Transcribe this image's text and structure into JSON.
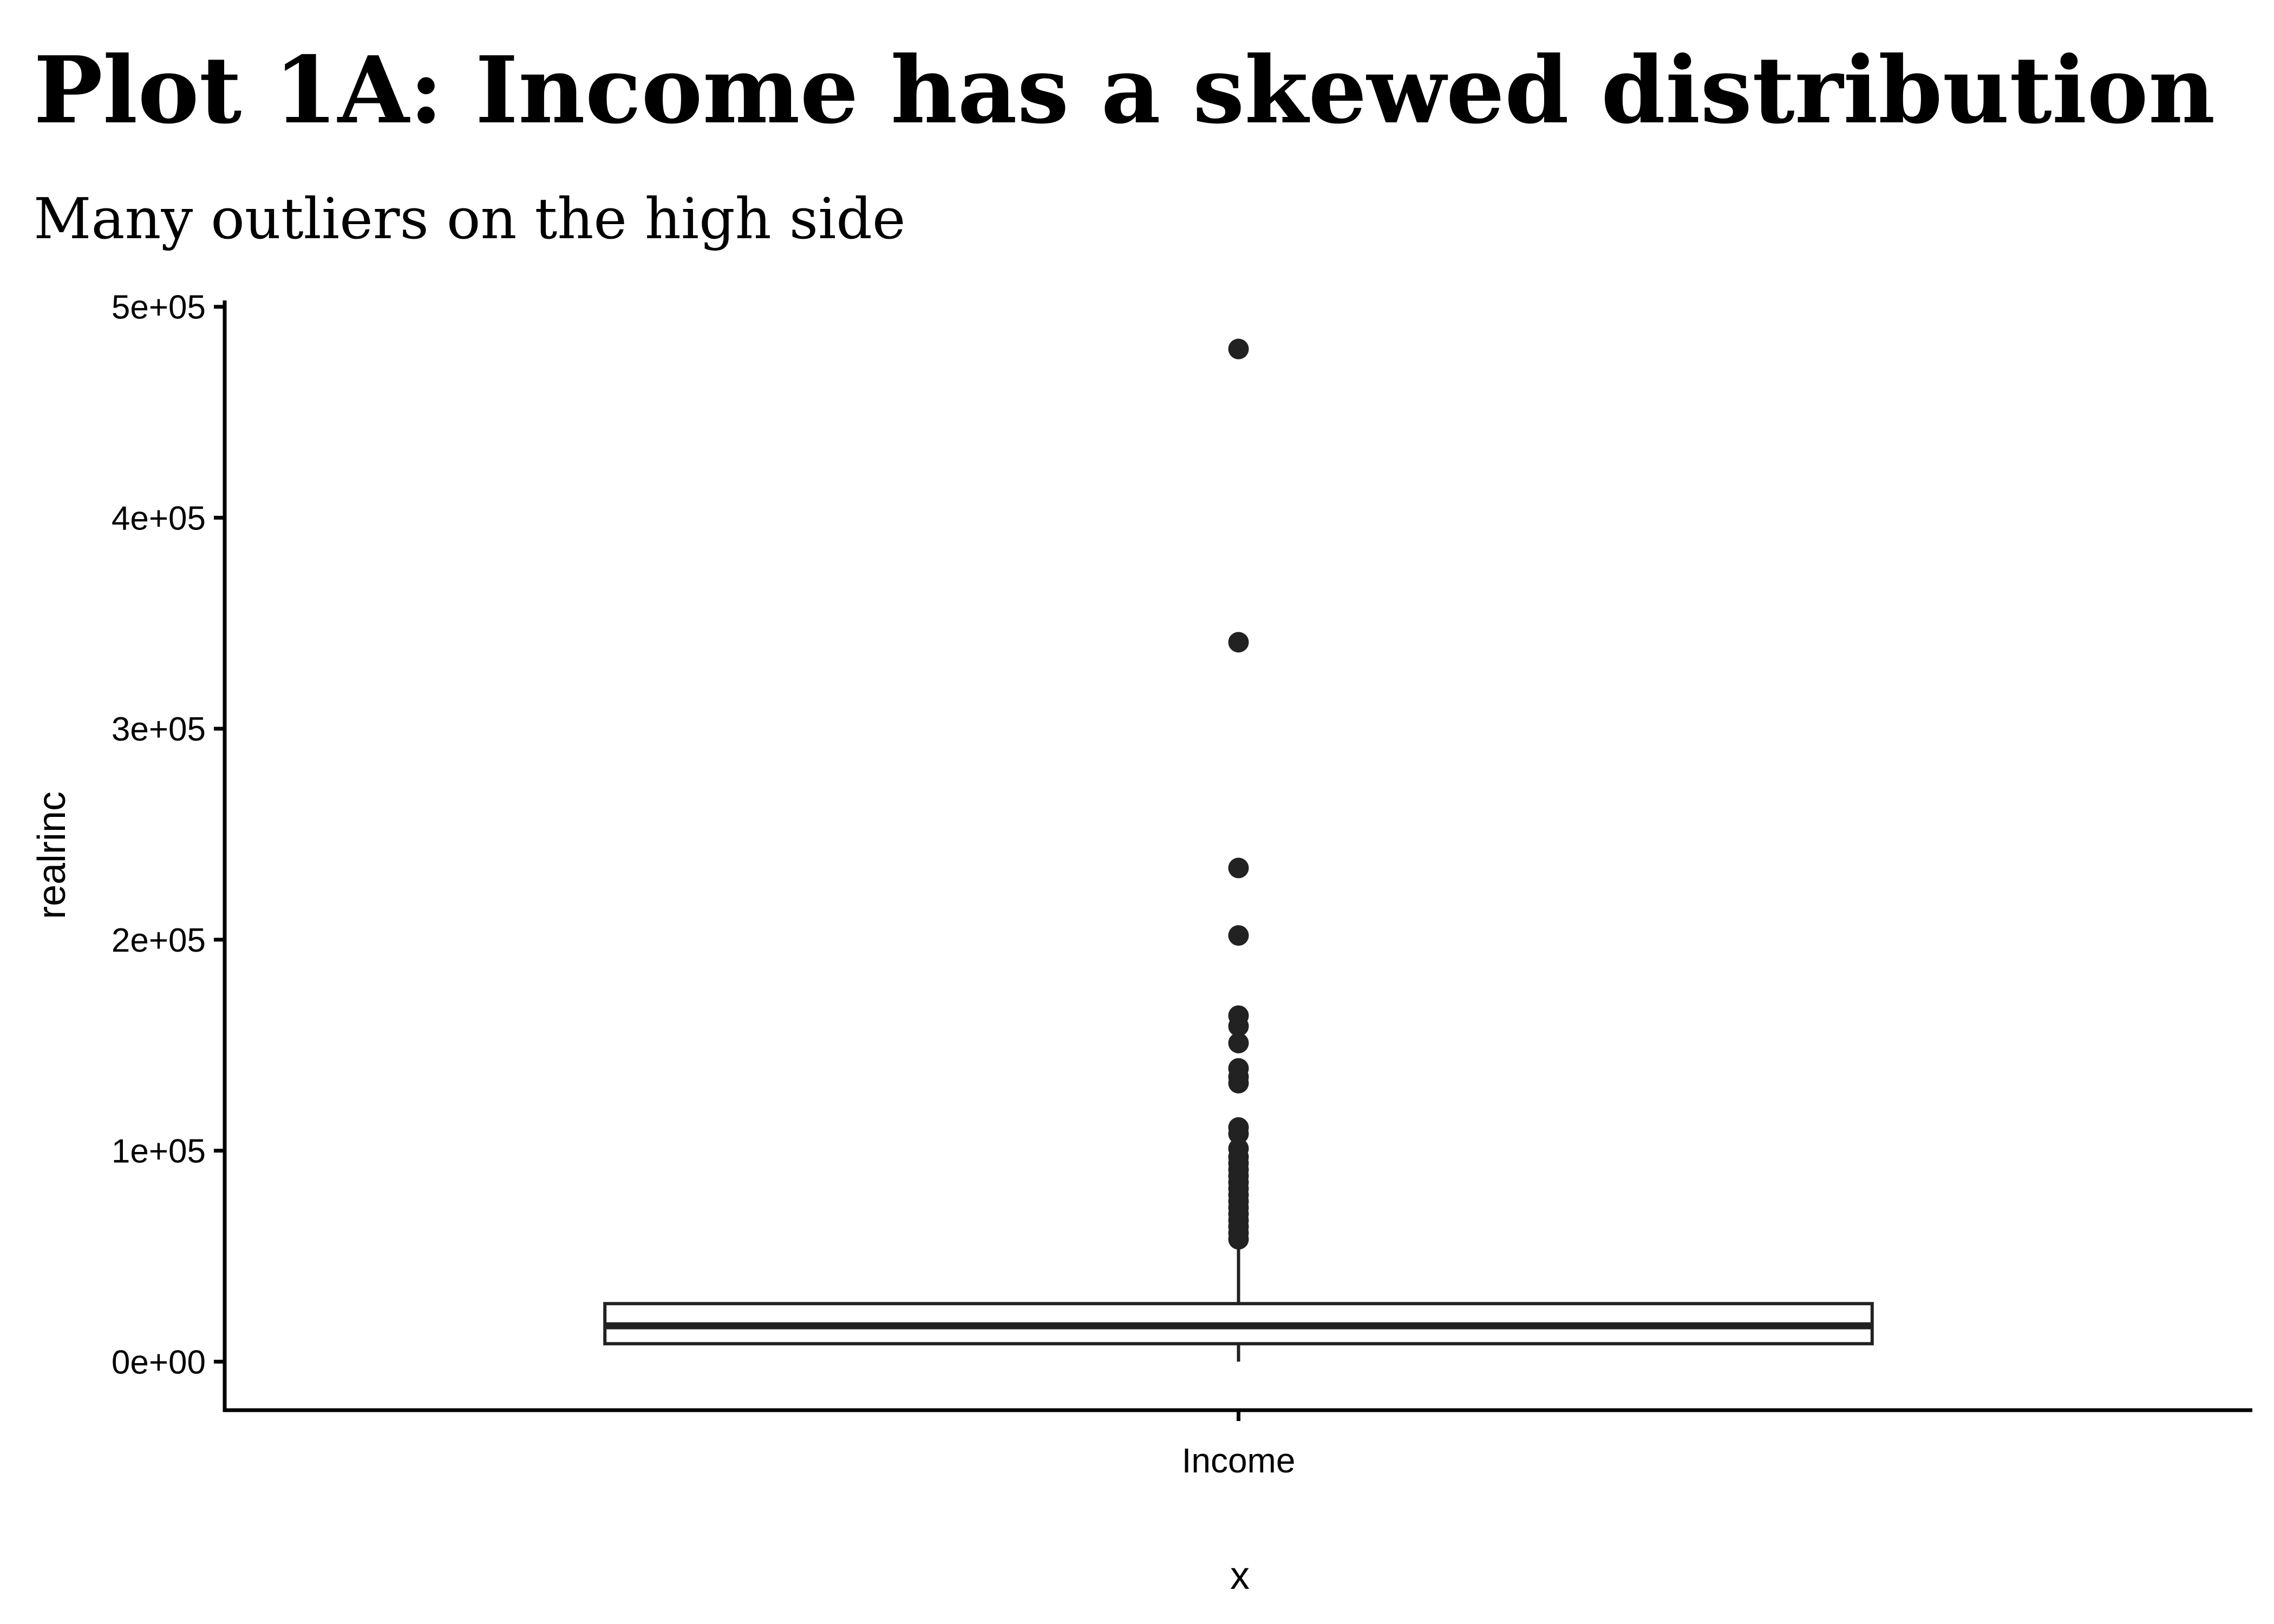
{
  "chart_data": {
    "type": "boxplot",
    "title": "Plot 1A: Income has a skewed distribution",
    "subtitle": "Many outliers on the high side",
    "xlabel": "x",
    "ylabel": "realrinc",
    "categories": [
      "Income"
    ],
    "y_ticks": [
      {
        "value": 0,
        "label": "0e+00"
      },
      {
        "value": 100000,
        "label": "1e+05"
      },
      {
        "value": 200000,
        "label": "2e+05"
      },
      {
        "value": 300000,
        "label": "3e+05"
      },
      {
        "value": 400000,
        "label": "4e+05"
      },
      {
        "value": 500000,
        "label": "5e+05"
      }
    ],
    "ylim": [
      -23000,
      503000
    ],
    "grid": false,
    "colors": {
      "box_outline": "#222222",
      "outlier": "#222222",
      "axis": "#000000"
    },
    "boxes": [
      {
        "category": "Income",
        "min": 0,
        "q1": 8500,
        "median": 17000,
        "q3": 27500,
        "max": 56000,
        "outliers": [
          480000,
          341000,
          234000,
          202000,
          164000,
          159000,
          151000,
          139000,
          135000,
          132000,
          111000,
          108000,
          101000,
          97000,
          94000,
          91000,
          88000,
          85000,
          82000,
          79000,
          76000,
          73000,
          70000,
          67000,
          64000,
          61000,
          58000
        ]
      }
    ]
  }
}
